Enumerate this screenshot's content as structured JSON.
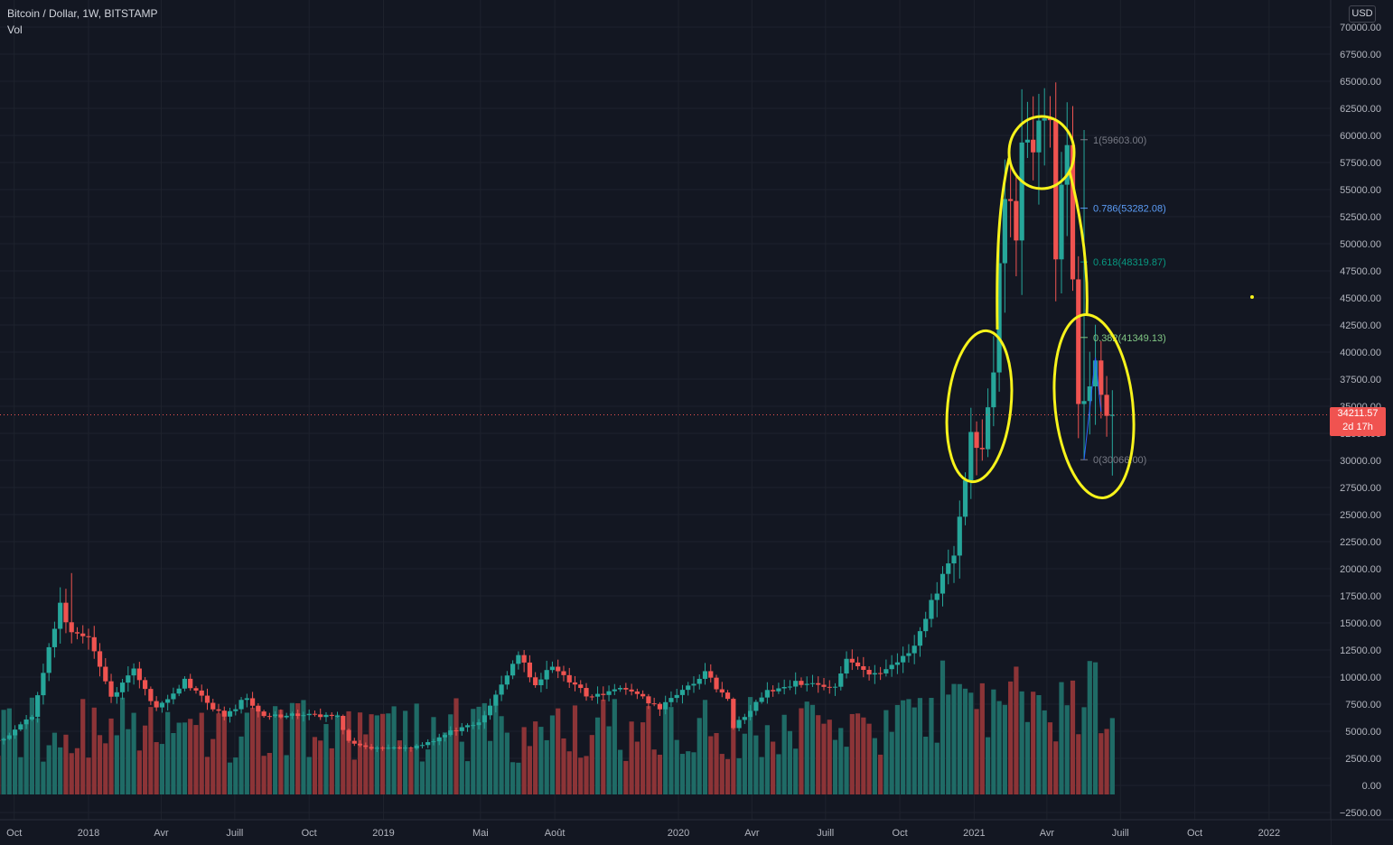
{
  "header": {
    "symbol_line": "Bitcoin / Dollar, 1W, BITSTAMP",
    "volume_label": "Vol",
    "currency": "USD"
  },
  "price_tag": {
    "price": "34211.57",
    "countdown": "2d 17h"
  },
  "colors": {
    "background": "#131722",
    "up": "#26a69a",
    "down": "#ef5350",
    "volume_up": "#1f6b66",
    "volume_down": "#8c3437",
    "annotation": "#f7f31b",
    "fib_1": "#787b86",
    "fib_0786": "#5b9cf6",
    "fib_0618": "#089981",
    "fib_0382": "#81c784",
    "fib_0": "#787b86"
  },
  "chart_data": {
    "type": "candlestick",
    "title": "Bitcoin / Dollar, 1W, BITSTAMP",
    "y_axis": {
      "range": [
        -2500,
        70000
      ],
      "ticks": [
        "−2500.00",
        "0.00",
        "2500.00",
        "5000.00",
        "7500.00",
        "10000.00",
        "12500.00",
        "15000.00",
        "17500.00",
        "20000.00",
        "22500.00",
        "25000.00",
        "27500.00",
        "30000.00",
        "32500.00",
        "35000.00",
        "37500.00",
        "40000.00",
        "42500.00",
        "45000.00",
        "47500.00",
        "50000.00",
        "52500.00",
        "55000.00",
        "57500.00",
        "60000.00",
        "62500.00",
        "65000.00",
        "67500.00",
        "70000.00"
      ]
    },
    "x_axis_ticks": [
      "Oct",
      "2018",
      "Avr",
      "Juill",
      "Oct",
      "2019",
      "Mai",
      "Août",
      "2020",
      "Avr",
      "Juill",
      "Oct",
      "2021",
      "Avr",
      "Juill",
      "Oct",
      "2022"
    ],
    "price_anchors": [
      [
        "2017-09-25",
        4200
      ],
      [
        "2017-10-30",
        6400
      ],
      [
        "2017-12-04",
        16500
      ],
      [
        "2017-12-18",
        14000
      ],
      [
        "2018-01-08",
        13500
      ],
      [
        "2018-02-05",
        8100
      ],
      [
        "2018-03-05",
        11000
      ],
      [
        "2018-04-02",
        7000
      ],
      [
        "2018-05-07",
        9700
      ],
      [
        "2018-06-25",
        6200
      ],
      [
        "2018-07-23",
        8200
      ],
      [
        "2018-08-13",
        6300
      ],
      [
        "2018-09-24",
        6600
      ],
      [
        "2018-11-12",
        6300
      ],
      [
        "2018-11-26",
        4000
      ],
      [
        "2018-12-17",
        3500
      ],
      [
        "2019-02-04",
        3400
      ],
      [
        "2019-03-04",
        3900
      ],
      [
        "2019-04-01",
        5000
      ],
      [
        "2019-05-06",
        5700
      ],
      [
        "2019-05-27",
        8500
      ],
      [
        "2019-06-24",
        11800
      ],
      [
        "2019-07-15",
        9500
      ],
      [
        "2019-08-05",
        11000
      ],
      [
        "2019-09-23",
        8000
      ],
      [
        "2019-10-28",
        9200
      ],
      [
        "2019-12-16",
        7200
      ],
      [
        "2020-02-10",
        10300
      ],
      [
        "2020-03-09",
        7800
      ],
      [
        "2020-03-16",
        5300
      ],
      [
        "2020-04-27",
        8800
      ],
      [
        "2020-06-01",
        9500
      ],
      [
        "2020-07-20",
        9300
      ],
      [
        "2020-08-03",
        11500
      ],
      [
        "2020-09-07",
        10300
      ],
      [
        "2020-10-19",
        12000
      ],
      [
        "2020-11-09",
        15500
      ],
      [
        "2020-11-30",
        19000
      ],
      [
        "2020-12-14",
        21000
      ],
      [
        "2020-12-28",
        29000
      ],
      [
        "2021-01-04",
        33000
      ],
      [
        "2021-01-18",
        31000
      ],
      [
        "2021-02-01",
        39000
      ],
      [
        "2021-02-08",
        47000
      ],
      [
        "2021-02-15",
        55500
      ],
      [
        "2021-03-01",
        51000
      ],
      [
        "2021-03-08",
        59500
      ],
      [
        "2021-04-05",
        59800
      ],
      [
        "2021-04-12",
        60500
      ],
      [
        "2021-04-19",
        50000
      ],
      [
        "2021-05-03",
        58000
      ],
      [
        "2021-05-10",
        47000
      ],
      [
        "2021-05-17",
        36000
      ],
      [
        "2021-05-24",
        35500
      ],
      [
        "2021-06-07",
        39500
      ],
      [
        "2021-06-14",
        35500
      ],
      [
        "2021-06-21",
        34200
      ]
    ],
    "last_price": 34211.57
  },
  "fib_levels": [
    {
      "label": "1(59603.00)",
      "price": 59603.0,
      "color_key": "fib_1"
    },
    {
      "label": "0.786(53282.08)",
      "price": 53282.08,
      "color_key": "fib_0786"
    },
    {
      "label": "0.618(48319.87)",
      "price": 48319.87,
      "color_key": "fib_0618"
    },
    {
      "label": "0.382(41349.13)",
      "price": 41349.13,
      "color_key": "fib_0382"
    },
    {
      "label": "0(30066.00)",
      "price": 30066.0,
      "color_key": "fib_0"
    }
  ],
  "annotations": [
    "left-circle",
    "top-circle",
    "right-circle",
    "neck-line-left",
    "neck-line-right",
    "dot"
  ]
}
